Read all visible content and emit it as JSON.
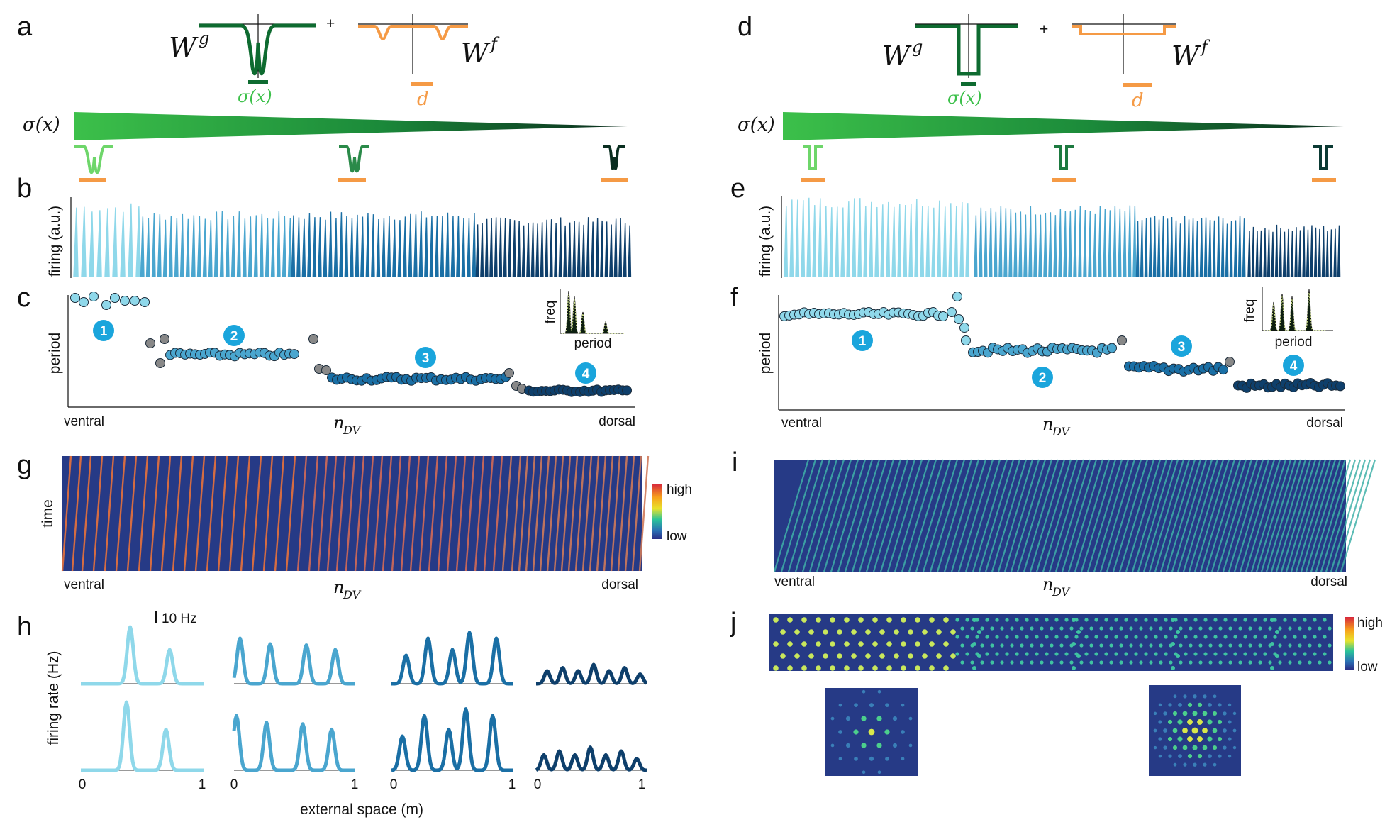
{
  "panel_labels": {
    "a": "a",
    "b": "b",
    "c": "c",
    "d": "d",
    "e": "e",
    "f": "f",
    "g": "g",
    "h": "h",
    "i": "i",
    "j": "j"
  },
  "kernels": {
    "wg": "W",
    "wg_sup": "g",
    "wf": "W",
    "wf_sup": "f",
    "plus": "+",
    "sigma": "σ(x)",
    "d": "d"
  },
  "axes": {
    "firing": "firing (a.u.)",
    "period": "period",
    "freq": "freq",
    "ventral": "ventral",
    "dorsal": "dorsal",
    "ndv": "n",
    "ndv_sub": "DV",
    "time": "time",
    "high": "high",
    "low": "low",
    "firing_rate": "firing rate (Hz)",
    "external_space": "external space (m)",
    "scale_bar": "10 Hz",
    "tick0": "0",
    "tick1": "1"
  },
  "modules": [
    "1",
    "2",
    "3",
    "4"
  ],
  "colors": {
    "green_dark": "#0e6b30",
    "green_light": "#3cc04a",
    "orange": "#f59a45",
    "module_1": "#8fd8ea",
    "module_2": "#4aa6cf",
    "module_3": "#1a6fa5",
    "module_4": "#0e3f6b",
    "badge": "#1aa5dc",
    "transition": "#888888",
    "heatmap_bg": "#263a86"
  }
}
